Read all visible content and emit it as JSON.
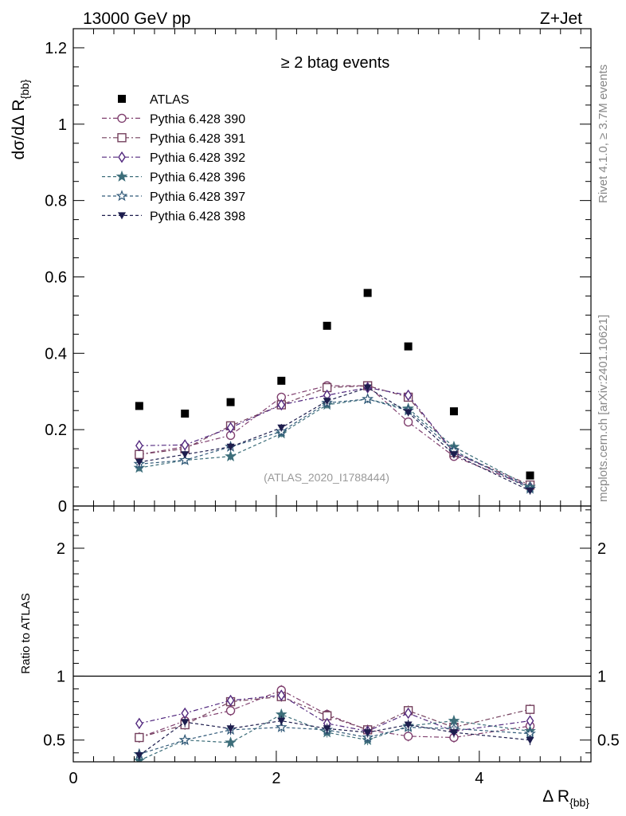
{
  "header": {
    "left": "13000 GeV pp",
    "right": "Z+Jet"
  },
  "side_text": {
    "rivet": "Rivet 4.1.0, ≥ 3.7M events",
    "mcplots": "mcplots.cern.ch [arXiv:2401.10621]"
  },
  "colors": {
    "p390": "#80406f",
    "p391": "#74405d",
    "p392": "#53297f",
    "p396": "#3d6e7a",
    "p397": "#325a79",
    "p398": "#1d1d4d",
    "data": "#000000"
  },
  "chart_data": [
    {
      "type": "scatter",
      "panel": "main",
      "title": "≥ 2 btag events",
      "ylabel_main": "dσ/dΔ R",
      "ylabel_sub": "{bb}",
      "watermark": "(ATLAS_2020_I1788444)",
      "xlim": [
        0,
        5.1
      ],
      "ylim": [
        0,
        1.25
      ],
      "yticks": [
        0,
        0.2,
        0.4,
        0.6,
        0.8,
        1,
        1.2
      ],
      "ytick_labels": [
        "0",
        "0.2",
        "0.4",
        "0.6",
        "0.8",
        "1",
        "1.2"
      ],
      "x": [
        0.65,
        1.1,
        1.55,
        2.05,
        2.5,
        2.9,
        3.3,
        3.75,
        4.5
      ],
      "series": [
        {
          "name": "ATLAS",
          "key": "data",
          "marker": "square-filled",
          "dash": "none",
          "values": [
            0.262,
            0.242,
            0.272,
            0.328,
            0.472,
            0.558,
            0.418,
            0.248,
            0.08
          ],
          "err": 0
        },
        {
          "name": "Pythia 6.428 390",
          "key": "p390",
          "marker": "circle-open",
          "dash": "6 3 2 3",
          "values": [
            0.135,
            0.155,
            0.185,
            0.285,
            0.315,
            0.315,
            0.22,
            0.13,
            0.05
          ],
          "err": 0.01
        },
        {
          "name": "Pythia 6.428 391",
          "key": "p391",
          "marker": "square-open",
          "dash": "6 3 2 3",
          "values": [
            0.135,
            0.15,
            0.21,
            0.265,
            0.31,
            0.315,
            0.285,
            0.14,
            0.055
          ],
          "err": 0.01
        },
        {
          "name": "Pythia 6.428 392",
          "key": "p392",
          "marker": "diamond-open",
          "dash": "6 3 2 3",
          "values": [
            0.158,
            0.16,
            0.205,
            0.265,
            0.29,
            0.31,
            0.29,
            0.14,
            0.05
          ],
          "err": 0.01
        },
        {
          "name": "Pythia 6.428 396",
          "key": "p396",
          "marker": "star-filled",
          "dash": "4 3",
          "values": [
            0.1,
            0.12,
            0.13,
            0.19,
            0.265,
            0.28,
            0.255,
            0.155,
            0.05
          ],
          "err": 0.01
        },
        {
          "name": "Pythia 6.428 397",
          "key": "p397",
          "marker": "star-open",
          "dash": "4 3",
          "values": [
            0.11,
            0.12,
            0.155,
            0.195,
            0.27,
            0.28,
            0.25,
            0.145,
            0.045
          ],
          "err": 0.01
        },
        {
          "name": "Pythia 6.428 398",
          "key": "p398",
          "marker": "triangle-down-filled",
          "dash": "4 3",
          "values": [
            0.115,
            0.135,
            0.155,
            0.205,
            0.275,
            0.31,
            0.245,
            0.135,
            0.04
          ],
          "err": 0.01
        }
      ]
    },
    {
      "type": "scatter",
      "panel": "ratio",
      "ylabel": "Ratio to ATLAS",
      "xlabel_main": "Δ R",
      "xlabel_sub": "{bb}",
      "xlim": [
        0,
        5.1
      ],
      "ylim": [
        0.33,
        2.33
      ],
      "xticks": [
        0,
        2,
        4
      ],
      "xtick_labels": [
        "0",
        "2",
        "4"
      ],
      "yticks": [
        0.5,
        1,
        2
      ],
      "ytick_labels": [
        "0.5",
        "1",
        "2"
      ],
      "x": [
        0.65,
        1.1,
        1.55,
        2.05,
        2.5,
        2.9,
        3.3,
        3.75,
        4.5
      ],
      "series": [
        {
          "name": "Pythia 6.428 390",
          "key": "p390",
          "values": [
            0.52,
            0.65,
            0.73,
            0.89,
            0.7,
            0.58,
            0.53,
            0.52,
            0.61
          ],
          "err": 0.04
        },
        {
          "name": "Pythia 6.428 391",
          "key": "p391",
          "values": [
            0.52,
            0.62,
            0.8,
            0.84,
            0.69,
            0.58,
            0.73,
            0.6,
            0.74
          ],
          "err": 0.04
        },
        {
          "name": "Pythia 6.428 392",
          "key": "p392",
          "values": [
            0.63,
            0.71,
            0.81,
            0.85,
            0.63,
            0.57,
            0.71,
            0.57,
            0.65
          ],
          "err": 0.04
        },
        {
          "name": "Pythia 6.428 396",
          "key": "p396",
          "values": [
            0.34,
            0.5,
            0.48,
            0.7,
            0.56,
            0.5,
            0.61,
            0.65,
            0.57
          ],
          "err": 0.04
        },
        {
          "name": "Pythia 6.428 397",
          "key": "p397",
          "values": [
            0.39,
            0.5,
            0.58,
            0.6,
            0.58,
            0.52,
            0.6,
            0.59,
            0.55
          ],
          "err": 0.04
        },
        {
          "name": "Pythia 6.428 398",
          "key": "p398",
          "values": [
            0.38,
            0.64,
            0.59,
            0.65,
            0.59,
            0.56,
            0.62,
            0.56,
            0.5
          ],
          "err": 0.04
        }
      ]
    }
  ]
}
